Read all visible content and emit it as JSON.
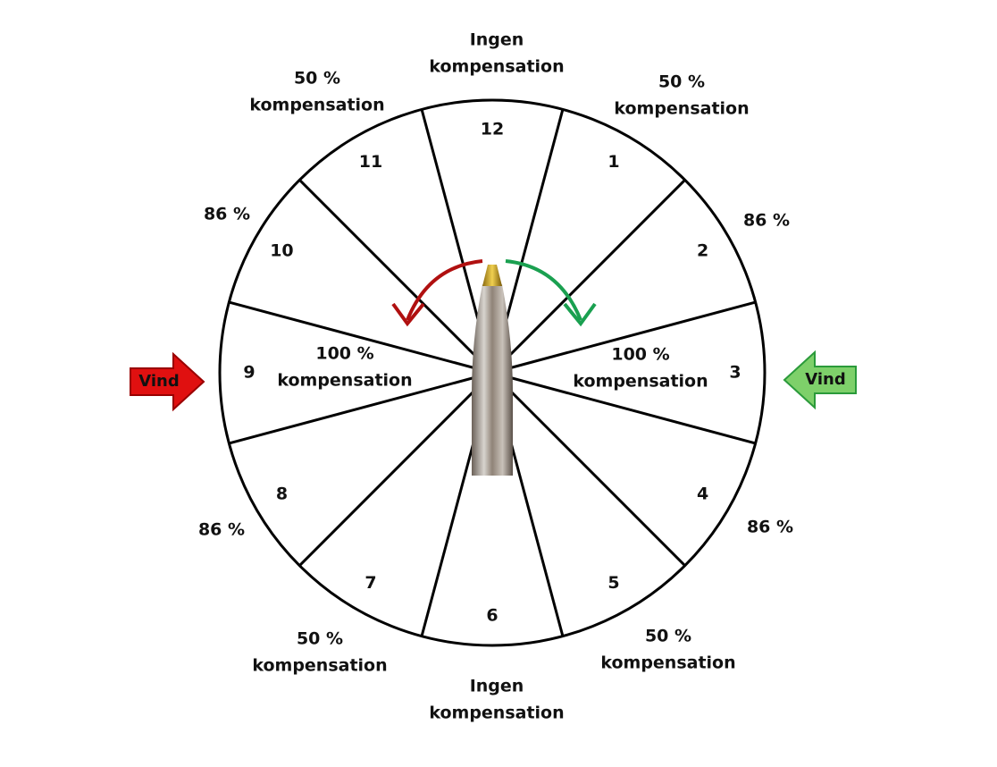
{
  "sectors": [
    "12",
    "1",
    "2",
    "3",
    "4",
    "5",
    "6",
    "7",
    "8",
    "9",
    "10",
    "11"
  ],
  "labels": [
    {
      "lines": [
        "Ingen",
        "kompensation"
      ]
    },
    {
      "lines": [
        "50 %",
        "kompensation"
      ]
    },
    {
      "lines": [
        "86 %"
      ]
    },
    {
      "lines": [
        "100 %",
        "kompensation"
      ]
    },
    {
      "lines": [
        "86 %"
      ]
    },
    {
      "lines": [
        "50 %",
        "kompensation"
      ]
    },
    {
      "lines": [
        "Ingen",
        "kompensation"
      ]
    },
    {
      "lines": [
        "50 %",
        "kompensation"
      ]
    },
    {
      "lines": [
        "86 %"
      ]
    },
    {
      "lines": [
        "100 %",
        "kompensation"
      ]
    },
    {
      "lines": [
        "86 %"
      ]
    },
    {
      "lines": [
        "50 %",
        "kompensation"
      ]
    }
  ],
  "wind_left": "Vind",
  "wind_right": "Vind"
}
